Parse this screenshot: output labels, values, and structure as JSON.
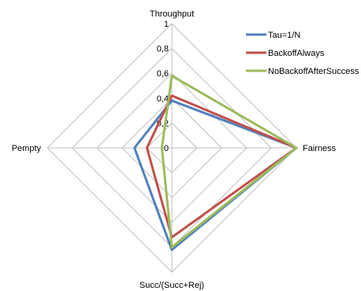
{
  "chart_data": {
    "type": "radar",
    "axes": [
      "Throughput",
      "Fairness",
      "Succ/(Succ+Rej)",
      "Pempty"
    ],
    "range": [
      0,
      1
    ],
    "ticks": [
      0,
      0.2,
      0.4,
      0.6,
      0.8,
      1
    ],
    "tick_labels": [
      "0",
      "0,2",
      "0,4",
      "0,6",
      "0,8",
      "1"
    ],
    "grid": true,
    "legend_position": "top-right",
    "series": [
      {
        "name": "Tau=1/N",
        "color": "#4f81bd",
        "values": [
          0.38,
          1.0,
          0.82,
          0.3
        ]
      },
      {
        "name": "BackoffAlways",
        "color": "#c0504d",
        "values": [
          0.42,
          1.0,
          0.72,
          0.2
        ]
      },
      {
        "name": "NoBackoffAfterSuccess",
        "color": "#9bbb59",
        "values": [
          0.58,
          1.0,
          0.8,
          0.08
        ]
      }
    ]
  }
}
